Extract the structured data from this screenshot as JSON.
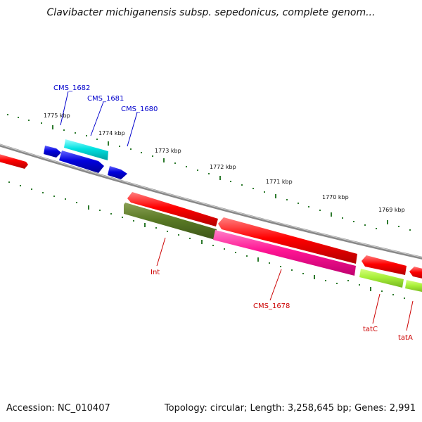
{
  "title": "Clavibacter michiganensis subsp. sepedonicus, complete genom...",
  "footer": {
    "accession": "Accession: NC_010407",
    "stats": "Topology: circular; Length: 3,258,645 bp; Genes: 2,991"
  },
  "scale_labels": [
    "1775 kbp",
    "1774 kbp",
    "1773 kbp",
    "1772 kbp",
    "1771 kbp",
    "1770 kbp",
    "1769 kbp"
  ],
  "genes_forward": [
    {
      "name": "CMS_1682",
      "color": "#0000cc"
    },
    {
      "name": "CMS_1681",
      "color": "#00cccc"
    },
    {
      "name": "CMS_1680",
      "color": "#0000cc"
    }
  ],
  "genes_reverse": [
    {
      "name": "Int",
      "color": "#556b2f"
    },
    {
      "name": "CMS_1678",
      "color": "#ff1493"
    },
    {
      "name": "tatC",
      "color": "#99cc33"
    },
    {
      "name": "tatA",
      "color": "#99cc33"
    }
  ],
  "colors": {
    "backbone": "#888888",
    "tick": "#2d7a2d",
    "cds": "#ff0000",
    "forward_label": "#0000cc",
    "reverse_label": "#cc0000"
  }
}
